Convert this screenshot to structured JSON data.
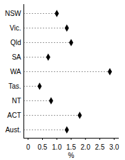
{
  "chart_data": {
    "type": "dot",
    "orientation": "horizontal",
    "categories": [
      "NSW",
      "Vic.",
      "Qld",
      "SA",
      "WA",
      "Tas.",
      "NT",
      "ACT",
      "Aust."
    ],
    "values": [
      1.0,
      1.35,
      1.5,
      0.7,
      2.85,
      0.4,
      0.8,
      1.8,
      1.35
    ],
    "color": "#000000",
    "marker": "diamond",
    "line_style": "dashed",
    "xlabel": "%",
    "xlim": [
      -0.15,
      3.15
    ],
    "xticks": [
      0,
      0.5,
      {
        "value": 1,
        "label": "1.0"
      },
      1.5,
      {
        "value": 2,
        "label": "2.0"
      },
      2.5,
      {
        "value": 3,
        "label": "3.0"
      }
    ],
    "grid": false
  }
}
